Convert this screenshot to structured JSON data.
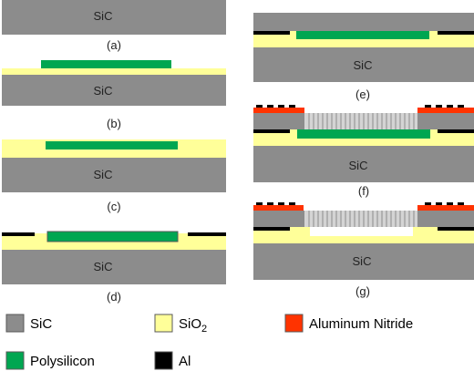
{
  "materials": {
    "sic": "#8c8c8c",
    "sio2": "#ffff99",
    "polysilicon": "#00a651",
    "al": "#000000",
    "aln": "#ff3300",
    "membrane_fill": "#d4d4d4",
    "membrane_lines": "#8c8c8c",
    "outline": "#595959"
  },
  "steps": [
    {
      "caption": "(a)",
      "substrate_label": "SiC"
    },
    {
      "caption": "(b)",
      "substrate_label": "SiC"
    },
    {
      "caption": "(c)",
      "substrate_label": "SiC"
    },
    {
      "caption": "(d)",
      "substrate_label": "SiC"
    },
    {
      "caption": "(e)",
      "substrate_label": "SiC"
    },
    {
      "caption": "(f)",
      "substrate_label": "SiC"
    },
    {
      "caption": "(g)",
      "substrate_label": "SiC"
    }
  ],
  "legend": {
    "sic": {
      "label": "SiC",
      "icon": "gray-square-swatch"
    },
    "sio2": {
      "label": "SiO",
      "subscript": "2",
      "icon": "yellow-square-swatch"
    },
    "aln": {
      "label": "Aluminum Nitride",
      "icon": "red-square-swatch"
    },
    "polysilicon": {
      "label": "Polysilicon",
      "icon": "green-square-swatch"
    },
    "al": {
      "label": "Al",
      "icon": "black-square-swatch"
    }
  }
}
